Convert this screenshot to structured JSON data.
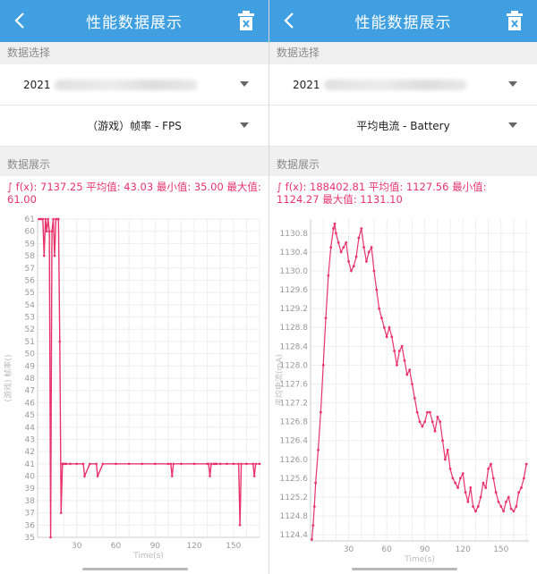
{
  "panels": [
    {
      "header": {
        "title": "性能数据展示"
      },
      "sections": {
        "data_select": "数据选择",
        "data_display": "数据展示"
      },
      "device_select": {
        "value": "2021"
      },
      "metric_select": {
        "value": "（游戏）帧率 - FPS"
      },
      "stats": {
        "text": "∫ f(x): 7137.25 平均值: 43.03 最小值: 35.00 最大值: 61.00"
      },
      "chart": {
        "ylabel": "(游戏) 帧率()",
        "xlabel": "Time(s)"
      }
    },
    {
      "header": {
        "title": "性能数据展示"
      },
      "sections": {
        "data_select": "数据选择",
        "data_display": "数据展示"
      },
      "device_select": {
        "value": "2021"
      },
      "metric_select": {
        "value": "平均电流 - Battery"
      },
      "stats": {
        "text": "∫ f(x): 188402.81 平均值: 1127.56 最小值: 1124.27 最大值: 1131.10"
      },
      "chart": {
        "ylabel": "平均电流(mA)",
        "xlabel": "Time(s)"
      }
    }
  ],
  "colors": {
    "header_bg": "#3f9fe0",
    "accent": "#e8336e",
    "grid": "#eeeeee"
  },
  "icons": {
    "back": "chevron-left-icon",
    "delete": "trash-icon",
    "dropdown": "caret-down-icon"
  },
  "chart_data": [
    {
      "type": "line",
      "xlabel": "Time(s)",
      "ylabel": "(游戏) 帧率()",
      "xlim": [
        0,
        170
      ],
      "ylim": [
        35,
        61
      ],
      "x_ticks": [
        30,
        60,
        90,
        120,
        150
      ],
      "y_ticks": [
        35,
        36,
        37,
        38,
        39,
        40,
        41,
        42,
        43,
        44,
        45,
        46,
        47,
        48,
        49,
        50,
        51,
        52,
        53,
        54,
        55,
        56,
        57,
        58,
        59,
        60,
        61
      ],
      "x": [
        1,
        2,
        3,
        4,
        5,
        6,
        7,
        8,
        9,
        10,
        11,
        12,
        13,
        14,
        15,
        16,
        17,
        18,
        19,
        20,
        21,
        22,
        25,
        30,
        35,
        36,
        40,
        45,
        46,
        50,
        60,
        70,
        80,
        90,
        100,
        102,
        103,
        104,
        110,
        120,
        130,
        131,
        132,
        133,
        135,
        136,
        137,
        140,
        145,
        150,
        154,
        155,
        156,
        160,
        165,
        166,
        167,
        170
      ],
      "y": [
        61,
        61,
        61,
        61,
        58,
        61,
        60,
        61,
        60,
        35,
        60,
        61,
        58,
        61,
        61,
        61,
        51,
        37,
        41,
        41,
        41,
        41,
        41,
        41,
        41,
        40,
        41,
        41,
        40,
        41,
        41,
        41,
        41,
        41,
        41,
        41,
        40,
        41,
        41,
        41,
        41,
        41,
        40,
        41,
        41,
        41,
        41,
        41,
        41,
        41,
        41,
        36,
        41,
        41,
        41,
        40,
        41,
        41
      ]
    },
    {
      "type": "line",
      "xlabel": "Time(s)",
      "ylabel": "平均电流(mA)",
      "xlim": [
        0,
        172
      ],
      "ylim": [
        1124.27,
        1131.1
      ],
      "x_ticks": [
        30,
        60,
        90,
        120,
        150
      ],
      "y_ticks": [
        1124.4,
        1124.8,
        1125.2,
        1125.6,
        1126.0,
        1126.4,
        1126.8,
        1127.2,
        1127.6,
        1128.0,
        1128.4,
        1128.8,
        1129.2,
        1129.6,
        1130.0,
        1130.4,
        1130.8
      ],
      "x": [
        1,
        2,
        3,
        4,
        6,
        8,
        10,
        12,
        14,
        16,
        18,
        19,
        20,
        22,
        24,
        26,
        28,
        30,
        32,
        34,
        36,
        38,
        40,
        42,
        44,
        46,
        48,
        50,
        52,
        54,
        56,
        58,
        60,
        62,
        64,
        66,
        68,
        70,
        72,
        74,
        76,
        78,
        80,
        82,
        84,
        86,
        88,
        90,
        92,
        94,
        96,
        98,
        100,
        102,
        104,
        106,
        108,
        110,
        112,
        114,
        116,
        118,
        120,
        122,
        124,
        126,
        128,
        130,
        132,
        134,
        136,
        138,
        140,
        142,
        144,
        146,
        148,
        150,
        152,
        154,
        156,
        158,
        160,
        162,
        164,
        166,
        168,
        170
      ],
      "y": [
        1124.3,
        1124.6,
        1125.0,
        1125.5,
        1126.2,
        1127.0,
        1128.0,
        1129.0,
        1129.9,
        1130.5,
        1130.9,
        1131.0,
        1130.8,
        1130.6,
        1130.4,
        1130.5,
        1130.6,
        1130.2,
        1130.0,
        1130.1,
        1130.3,
        1130.7,
        1130.9,
        1130.5,
        1130.2,
        1130.4,
        1130.5,
        1130.0,
        1129.6,
        1129.2,
        1129.0,
        1128.8,
        1128.6,
        1128.8,
        1128.6,
        1128.3,
        1128.0,
        1128.3,
        1128.4,
        1128.1,
        1127.8,
        1127.9,
        1127.6,
        1127.3,
        1127.0,
        1126.8,
        1126.7,
        1126.8,
        1127.0,
        1127.0,
        1126.8,
        1126.6,
        1126.9,
        1126.8,
        1126.4,
        1126.0,
        1126.2,
        1125.8,
        1125.6,
        1125.5,
        1125.4,
        1125.6,
        1125.7,
        1125.3,
        1125.1,
        1125.4,
        1125.0,
        1124.9,
        1125.0,
        1125.2,
        1125.5,
        1125.4,
        1125.8,
        1125.9,
        1125.6,
        1125.3,
        1125.1,
        1125.0,
        1124.9,
        1125.1,
        1125.2,
        1124.95,
        1124.9,
        1125.0,
        1125.3,
        1125.4,
        1125.6,
        1125.9
      ]
    }
  ]
}
